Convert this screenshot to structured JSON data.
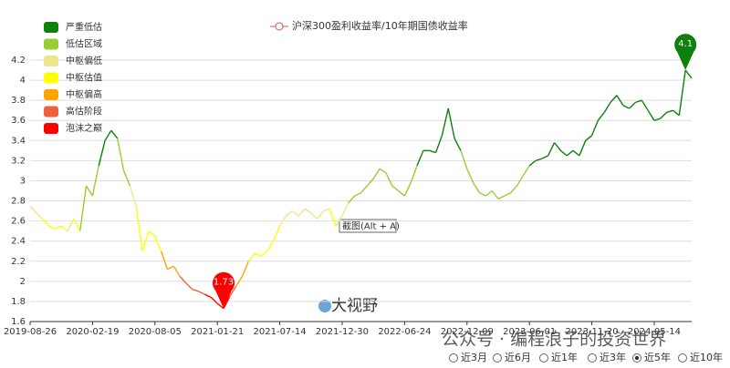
{
  "chart_data": {
    "type": "line",
    "series": [
      {
        "name": "沪深300盈利收益率/10年期国债收益率",
        "color": "#d9534f",
        "values": [
          2.75,
          2.68,
          2.62,
          2.55,
          2.52,
          2.55,
          2.5,
          2.62,
          2.5,
          2.95,
          2.85,
          3.15,
          3.4,
          3.5,
          3.42,
          3.1,
          2.95,
          2.75,
          2.3,
          2.5,
          2.45,
          2.3,
          2.12,
          2.15,
          2.05,
          1.98,
          1.92,
          1.9,
          1.87,
          1.84,
          1.78,
          1.73,
          1.85,
          1.95,
          2.05,
          2.2,
          2.28,
          2.25,
          2.3,
          2.4,
          2.55,
          2.65,
          2.7,
          2.65,
          2.72,
          2.68,
          2.62,
          2.7,
          2.72,
          2.55,
          2.65,
          2.78,
          2.85,
          2.88,
          2.95,
          3.02,
          3.12,
          3.08,
          2.95,
          2.9,
          2.85,
          2.98,
          3.15,
          3.3,
          3.3,
          3.28,
          3.45,
          3.72,
          3.42,
          3.3,
          3.12,
          2.98,
          2.88,
          2.85,
          2.9,
          2.82,
          2.85,
          2.88,
          2.95,
          3.05,
          3.15,
          3.2,
          3.22,
          3.25,
          3.38,
          3.3,
          3.25,
          3.3,
          3.25,
          3.4,
          3.45,
          3.6,
          3.68,
          3.78,
          3.85,
          3.75,
          3.72,
          3.78,
          3.8,
          3.7,
          3.6,
          3.62,
          3.68,
          3.7,
          3.65,
          4.1,
          4.02
        ],
        "zone": [
          2,
          2,
          2,
          3,
          3,
          3,
          3,
          2,
          3,
          1,
          1,
          1,
          0,
          0,
          0,
          1,
          1,
          2,
          3,
          3,
          3,
          3,
          4,
          4,
          4,
          5,
          5,
          5,
          5,
          6,
          6,
          6,
          6,
          5,
          4,
          4,
          3,
          3,
          3,
          3,
          3,
          2,
          2,
          2,
          2,
          2,
          2,
          2,
          2,
          3,
          2,
          2,
          1,
          1,
          1,
          1,
          1,
          1,
          1,
          1,
          1,
          1,
          1,
          0,
          0,
          0,
          0,
          0,
          0,
          0,
          1,
          1,
          1,
          1,
          1,
          1,
          1,
          1,
          1,
          1,
          1,
          0,
          0,
          0,
          0,
          0,
          0,
          0,
          0,
          0,
          0,
          0,
          0,
          0,
          0,
          0,
          0,
          0,
          0,
          0,
          0,
          0,
          0,
          0,
          0,
          0,
          0
        ]
      }
    ],
    "pins": [
      31,
      105
    ],
    "categories": [
      "2019-08-26",
      null,
      null,
      null,
      null,
      null,
      null,
      null,
      null,
      null,
      "2020-02-19",
      null,
      null,
      null,
      null,
      null,
      null,
      null,
      null,
      null,
      "2020-08-05",
      null,
      null,
      null,
      null,
      null,
      null,
      null,
      null,
      null,
      "2021-01-21",
      null,
      null,
      null,
      null,
      null,
      null,
      null,
      null,
      null,
      "2021-07-14",
      null,
      null,
      null,
      null,
      null,
      null,
      null,
      null,
      null,
      "2021-12-30",
      null,
      null,
      null,
      null,
      null,
      null,
      null,
      null,
      null,
      "2022-06-24",
      null,
      null,
      null,
      null,
      null,
      null,
      null,
      null,
      null,
      "2022-12-09",
      null,
      null,
      null,
      null,
      null,
      null,
      null,
      null,
      null,
      "2023-06-01",
      null,
      null,
      null,
      null,
      null,
      null,
      null,
      null,
      null,
      "2023-11-20",
      null,
      null,
      null,
      null,
      null,
      null,
      null,
      null,
      null,
      "2024-05-14",
      null,
      null,
      null,
      null,
      null,
      null
    ],
    "zones": [
      {
        "name": "严重低估",
        "color": "#0d800d"
      },
      {
        "name": "低估区域",
        "color": "#9acd32"
      },
      {
        "name": "中枢偏低",
        "color": "#eee68b"
      },
      {
        "name": "中枢估值",
        "color": "#ffff00"
      },
      {
        "name": "中枢偏高",
        "color": "#ffa500"
      },
      {
        "name": "高估阶段",
        "color": "#f0603f"
      },
      {
        "name": "泡沫之巅",
        "color": "#ff0000"
      }
    ],
    "ylim": [
      1.6,
      4.2
    ],
    "yticks": [
      1.6,
      1.8,
      2,
      2.2,
      2.4,
      2.6,
      2.8,
      3,
      3.2,
      3.4,
      3.6,
      3.8,
      4,
      4.2
    ],
    "grid": true,
    "watermark": "大视野",
    "footer_watermark": "公众号 · 编程浪子的投资世界",
    "tooltip": "截图(Alt + A)",
    "range_options": [
      "近3月",
      "近6月",
      "近1年",
      "近3年",
      "近5年",
      "近10年"
    ],
    "selected_range": 4
  }
}
